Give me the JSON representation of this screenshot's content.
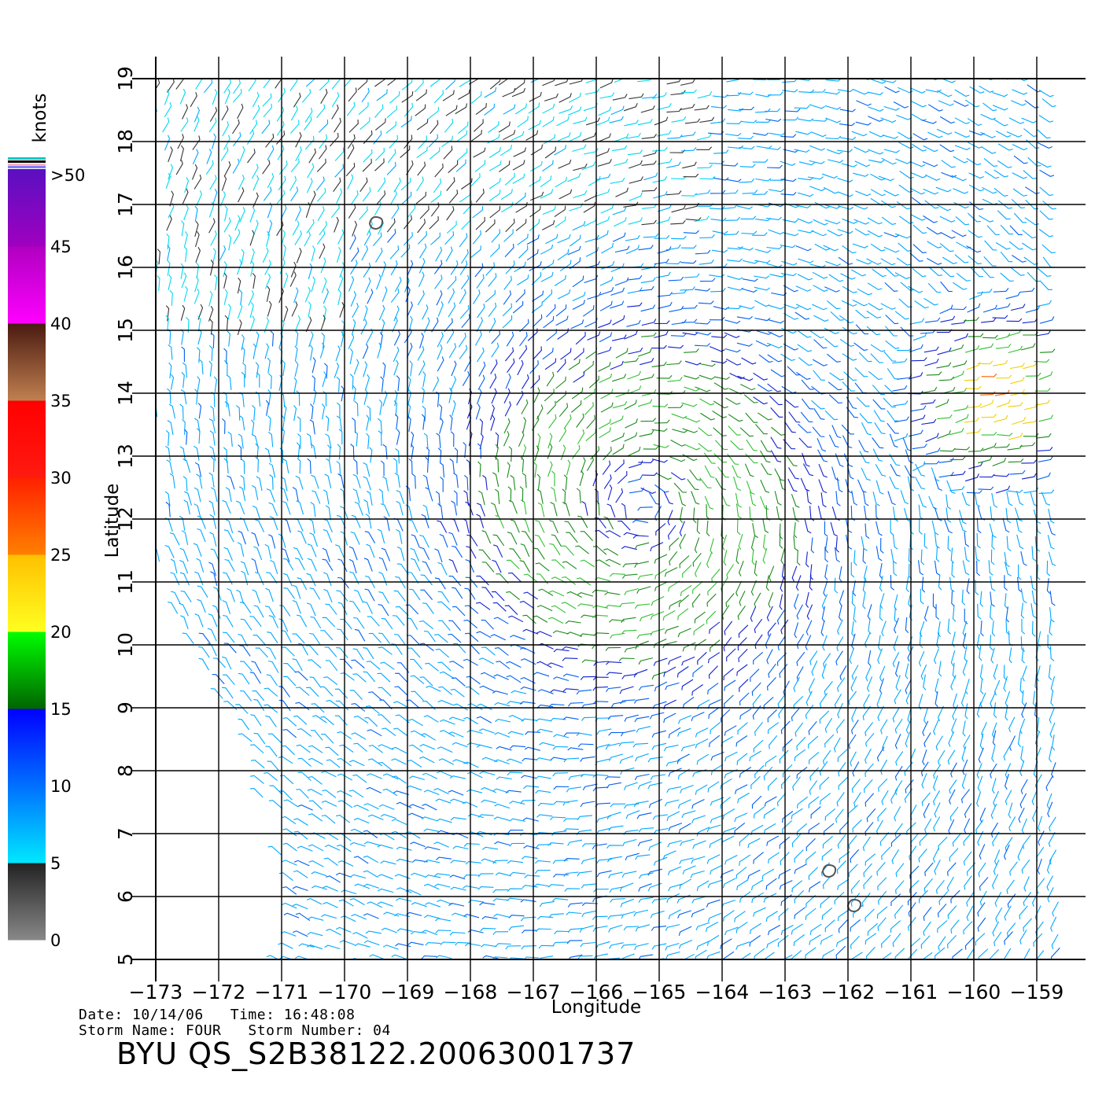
{
  "chart_data": {
    "type": "wind-vector-map",
    "xlabel": "Longitude",
    "ylabel": "Latitude",
    "xlim": [
      -173,
      -158.6
    ],
    "ylim": [
      5,
      19
    ],
    "x_ticks": [
      -173,
      -172,
      -171,
      -170,
      -169,
      -168,
      -167,
      -166,
      -165,
      -164,
      -163,
      -162,
      -161,
      -160,
      -159
    ],
    "y_ticks": [
      5,
      6,
      7,
      8,
      9,
      10,
      11,
      12,
      13,
      14,
      15,
      16,
      17,
      18,
      19
    ],
    "grid": true,
    "circulation_center": [
      -165.3,
      12.2
    ],
    "islands": [
      {
        "lon": -169.5,
        "lat": 16.7
      },
      {
        "lon": -162.3,
        "lat": 6.4
      },
      {
        "lon": -161.9,
        "lat": 5.85
      }
    ],
    "colorbar": {
      "unit": "knots",
      "labels": [
        "0",
        "5",
        "10",
        "15",
        "20",
        "25",
        "30",
        "35",
        "40",
        "45",
        ">50"
      ],
      "bands": [
        {
          "from": 0,
          "to": 5,
          "colors": [
            "#888888",
            "#222222"
          ]
        },
        {
          "from": 5,
          "to": 10,
          "colors": [
            "#00e8ff",
            "#0070ff"
          ]
        },
        {
          "from": 10,
          "to": 15,
          "colors": [
            "#0070ff",
            "#0000ff"
          ]
        },
        {
          "from": 15,
          "to": 20,
          "colors": [
            "#006400",
            "#00ff00"
          ]
        },
        {
          "from": 20,
          "to": 25,
          "colors": [
            "#ffff20",
            "#ffc000"
          ]
        },
        {
          "from": 25,
          "to": 30,
          "colors": [
            "#ff8000",
            "#ff2000"
          ]
        },
        {
          "from": 30,
          "to": 35,
          "colors": [
            "#ff1a10",
            "#ff0000"
          ]
        },
        {
          "from": 35,
          "to": 40,
          "colors": [
            "#c08050",
            "#4a1a10"
          ]
        },
        {
          "from": 40,
          "to": 45,
          "colors": [
            "#ff00ff",
            "#b000c0"
          ]
        },
        {
          "from": 45,
          "to": 50,
          "colors": [
            "#a000c0",
            "#5a10c0"
          ]
        }
      ]
    }
  },
  "info": {
    "date_line": "Date: 10/14/06   Time: 16:48:08",
    "storm_line": "Storm Name: FOUR   Storm Number: 04",
    "product_id": "BYU QS_S2B38122.20063001737"
  }
}
